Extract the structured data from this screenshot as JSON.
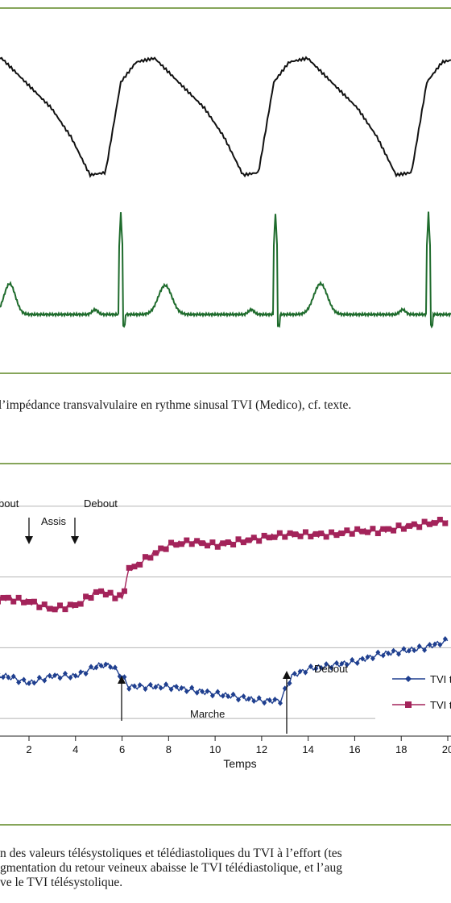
{
  "figure1": {
    "caption": "l’impédance transvalvulaire en rythme sinusal TVI (Medico), cf. texte.",
    "colors": {
      "impedance_trace": "#111111",
      "ecg_trace": "#1e6b2c"
    }
  },
  "figure2": {
    "chart_data": {
      "type": "line",
      "xlabel": "Temps",
      "x_ticks": [
        2,
        4,
        6,
        8,
        10,
        12,
        14,
        16,
        18,
        "20"
      ],
      "x_tick_labels": [
        "2",
        "4",
        "6",
        "8",
        "10",
        "12",
        "14",
        "16",
        "18",
        "20"
      ],
      "annotations": [
        "bout",
        "Assis",
        "Debout",
        "Debout",
        "Marche"
      ],
      "legend": [
        "TVI t",
        "TVI t"
      ],
      "series": [
        {
          "name": "TVI t",
          "color": "#a3235a",
          "marker": "square",
          "x": [
            0,
            1,
            2,
            3,
            4,
            5,
            5.5,
            6,
            6.3,
            7,
            8,
            9,
            10,
            11,
            12,
            13,
            14,
            15,
            16,
            17,
            18,
            19,
            20
          ],
          "y": [
            5.3,
            5.4,
            5.3,
            5.1,
            5.2,
            5.6,
            5.5,
            5.4,
            6.2,
            6.5,
            6.9,
            7.0,
            6.9,
            7.0,
            7.1,
            7.2,
            7.2,
            7.2,
            7.3,
            7.3,
            7.4,
            7.5,
            7.6
          ]
        },
        {
          "name": "TVI t",
          "color": "#1f3f8f",
          "marker": "diamond",
          "x": [
            0,
            1,
            2,
            3,
            4,
            5,
            5.5,
            6,
            6.3,
            7,
            8,
            9,
            10,
            11,
            12,
            12.8,
            13.3,
            14,
            15,
            16,
            17,
            18,
            19,
            20
          ],
          "y": [
            3.2,
            3.2,
            3.0,
            3.2,
            3.2,
            3.5,
            3.5,
            3.2,
            2.9,
            2.9,
            2.9,
            2.8,
            2.7,
            2.6,
            2.5,
            2.5,
            3.2,
            3.4,
            3.5,
            3.6,
            3.8,
            3.9,
            4.0,
            4.2
          ]
        }
      ],
      "ylim": [
        1.5,
        8.5
      ],
      "gridlines_y": [
        2.0,
        4.0,
        6.0,
        8.0
      ],
      "grid": true
    },
    "legend_labels": {
      "tvi1": "TVI t",
      "tvi2": "TVI t"
    }
  },
  "figure2_caption": {
    "lines": [
      "n des valeurs télésystoliques et télédiastoliques du TVI à l’effort (tes",
      "gmentation du retour veineux abaisse le TVI télédiastolique, et l’aug",
      "ve le TVI télésystolique."
    ]
  }
}
